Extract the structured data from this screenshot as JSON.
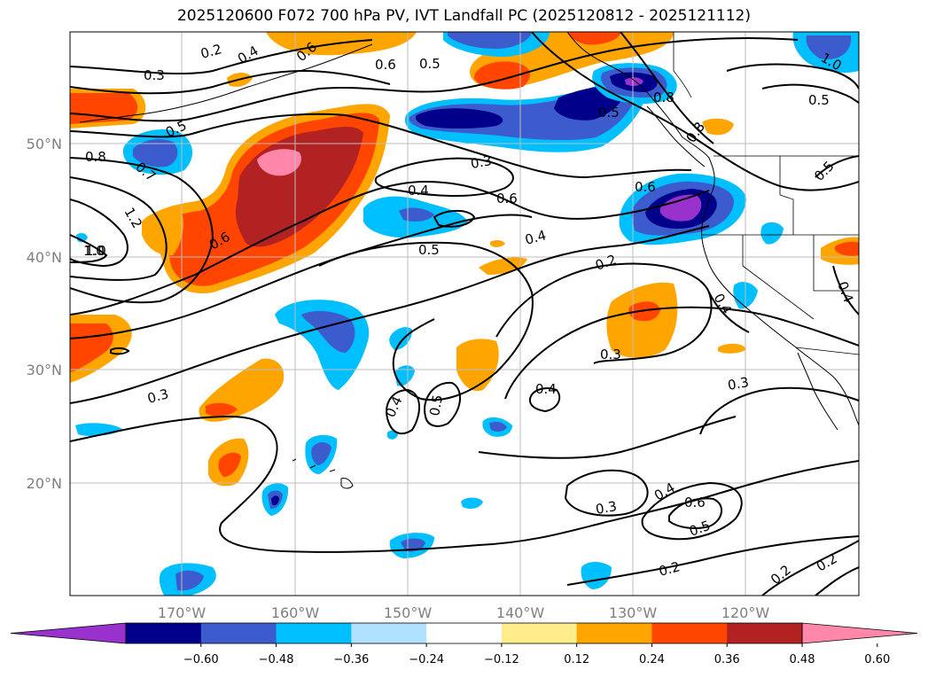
{
  "title": "2025120600 F072 700 hPa PV, IVT Landfall PC (2025120812 - 2025121112)",
  "map": {
    "lat_labels": [
      "50°N",
      "40°N",
      "30°N",
      "20°N"
    ],
    "lon_labels": [
      "170°W",
      "160°W",
      "150°W",
      "140°W",
      "130°W",
      "120°W"
    ],
    "contour_labels": [
      "0.2",
      "0.3",
      "0.4",
      "0.5",
      "0.6",
      "0.8",
      "1.0",
      "1.2",
      "0.7",
      "0.3",
      "0.5",
      "0.6",
      "0.4",
      "0.5",
      "0.4",
      "0.2",
      "0.6",
      "0.8",
      "0.8",
      "0.5",
      "0.6",
      "0.5",
      "1.0",
      "0.5",
      "0.4",
      "0.4",
      "0.3",
      "0.4",
      "0.5",
      "0.4",
      "0.3",
      "0.4",
      "0.3",
      "0.6",
      "0.5",
      "0.2",
      "0.2",
      "0.2",
      "0.3",
      "0.8",
      "1.0",
      "0.6"
    ],
    "colors": {
      "neg_extreme": "#9932cc",
      "neg_060": "#00008b",
      "neg_048": "#3c5cce",
      "neg_036": "#00bfff",
      "neg_024": "#b0e2ff",
      "neutral": "#ffffff",
      "pos_012": "#ffec8b",
      "pos_024": "#ffa500",
      "pos_036": "#ff4500",
      "pos_048": "#b22222",
      "pos_extreme": "#ff88aa"
    }
  },
  "colorbar": {
    "ticks": [
      "−0.60",
      "−0.48",
      "−0.36",
      "−0.24",
      "−0.12",
      "0.12",
      "0.24",
      "0.36",
      "0.48",
      "0.60"
    ],
    "bin_colors": [
      "#9932cc",
      "#00008b",
      "#3c5cce",
      "#00bfff",
      "#b0e2ff",
      "#ffffff",
      "#ffec8b",
      "#ffa500",
      "#ff4500",
      "#b22222",
      "#ff88aa"
    ]
  }
}
